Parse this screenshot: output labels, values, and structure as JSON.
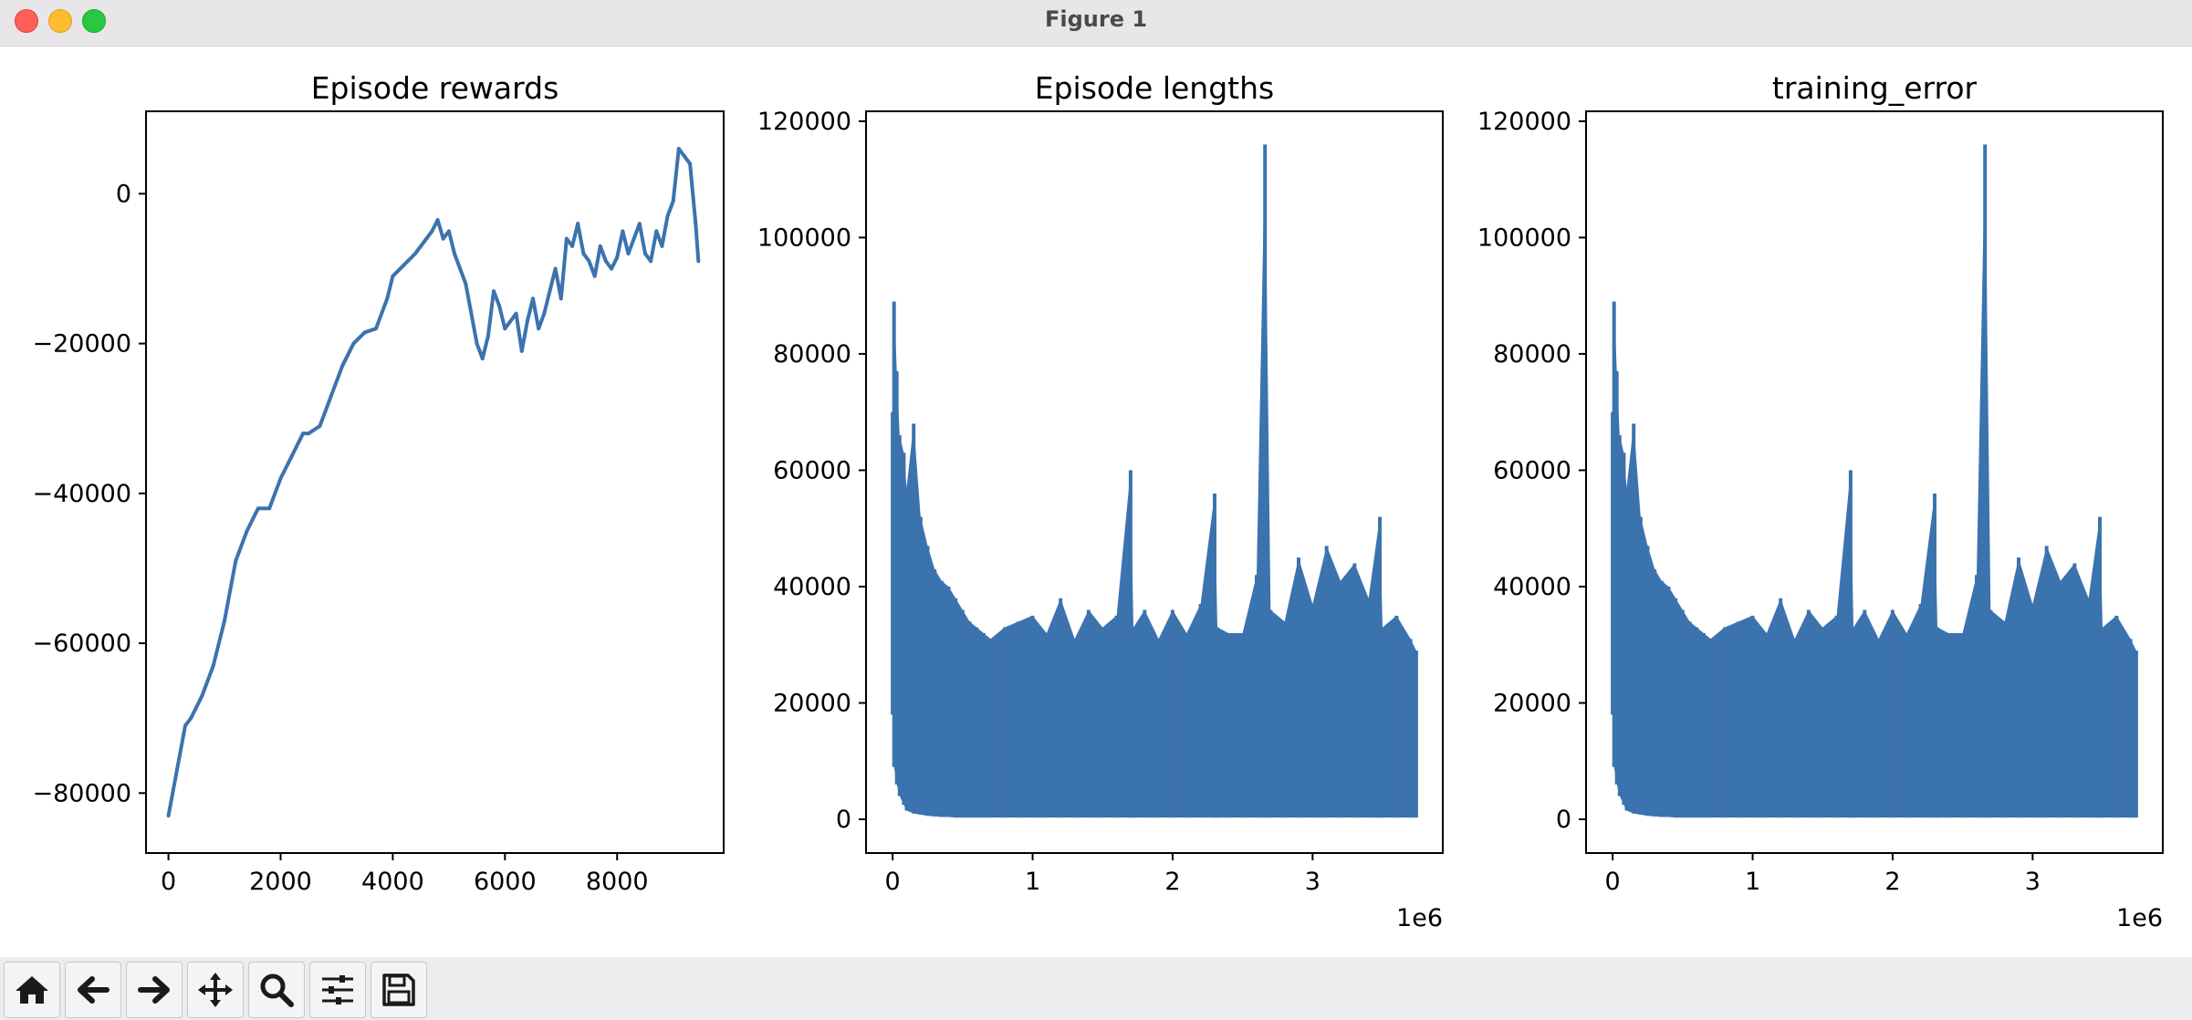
{
  "window": {
    "title": "Figure 1"
  },
  "toolbar": {
    "buttons": [
      {
        "name": "home-button",
        "icon": "home-icon"
      },
      {
        "name": "back-button",
        "icon": "arrow-left-icon"
      },
      {
        "name": "forward-button",
        "icon": "arrow-right-icon"
      },
      {
        "name": "pan-button",
        "icon": "move-icon"
      },
      {
        "name": "zoom-button",
        "icon": "magnifier-icon"
      },
      {
        "name": "configure-subplots-button",
        "icon": "sliders-icon"
      },
      {
        "name": "save-button",
        "icon": "floppy-disk-icon"
      }
    ]
  },
  "chart_data": [
    {
      "type": "line",
      "title": "Episode rewards",
      "xlabel": "",
      "ylabel": "",
      "xlim": [
        -400,
        9900
      ],
      "ylim": [
        -88000,
        11000
      ],
      "xticks": [
        0,
        2000,
        4000,
        6000,
        8000
      ],
      "xtick_labels": [
        "0",
        "2000",
        "4000",
        "6000",
        "8000"
      ],
      "yticks": [
        0,
        -20000,
        -40000,
        -60000,
        -80000
      ],
      "ytick_labels": [
        "0",
        "−20000",
        "−40000",
        "−60000",
        "−80000"
      ],
      "offset_text": "",
      "color": "#3b73ae",
      "x": [
        0,
        150,
        300,
        400,
        600,
        800,
        1000,
        1200,
        1400,
        1600,
        1800,
        2000,
        2200,
        2400,
        2500,
        2700,
        2900,
        3100,
        3300,
        3500,
        3700,
        3900,
        4000,
        4200,
        4400,
        4600,
        4700,
        4800,
        4900,
        5000,
        5100,
        5300,
        5500,
        5600,
        5700,
        5800,
        5900,
        6000,
        6200,
        6300,
        6400,
        6500,
        6600,
        6700,
        6900,
        7000,
        7100,
        7200,
        7300,
        7400,
        7500,
        7600,
        7700,
        7800,
        7900,
        8000,
        8100,
        8200,
        8300,
        8400,
        8500,
        8600,
        8700,
        8800,
        8900,
        9000,
        9100,
        9200,
        9300,
        9400,
        9450
      ],
      "y": [
        -83000,
        -77000,
        -71000,
        -70000,
        -67000,
        -63000,
        -57000,
        -49000,
        -45000,
        -42000,
        -42000,
        -38000,
        -35000,
        -32000,
        -32000,
        -31000,
        -27000,
        -23000,
        -20000,
        -18500,
        -18000,
        -14000,
        -11000,
        -9500,
        -8000,
        -6000,
        -5000,
        -3500,
        -6000,
        -5000,
        -8000,
        -12000,
        -20000,
        -22000,
        -19000,
        -13000,
        -15000,
        -18000,
        -16000,
        -21000,
        -17000,
        -14000,
        -18000,
        -16000,
        -10000,
        -14000,
        -6000,
        -7000,
        -4000,
        -8000,
        -9000,
        -11000,
        -7000,
        -9000,
        -10000,
        -8500,
        -5000,
        -8000,
        -6000,
        -4000,
        -8000,
        -9000,
        -5000,
        -7000,
        -3000,
        -1000,
        6000,
        5000,
        4000,
        -4000,
        -9000
      ]
    },
    {
      "type": "line",
      "title": "Episode lengths",
      "xlabel": "",
      "ylabel": "",
      "xlim": [
        -0.19,
        3.93
      ],
      "ylim": [
        -5800,
        121700
      ],
      "xticks": [
        0,
        1,
        2,
        3
      ],
      "xtick_labels": [
        "0",
        "1",
        "2",
        "3"
      ],
      "yticks": [
        0,
        20000,
        40000,
        60000,
        80000,
        100000,
        120000
      ],
      "ytick_labels": [
        "0",
        "20000",
        "40000",
        "60000",
        "80000",
        "100000",
        "120000"
      ],
      "offset_text": "1e6",
      "color": "#3b73ae",
      "x": [
        0,
        0.01,
        0.03,
        0.05,
        0.08,
        0.1,
        0.15,
        0.2,
        0.25,
        0.3,
        0.35,
        0.4,
        0.45,
        0.5,
        0.55,
        0.6,
        0.65,
        0.7,
        0.8,
        0.9,
        1.0,
        1.1,
        1.2,
        1.3,
        1.4,
        1.5,
        1.6,
        1.7,
        1.72,
        1.8,
        1.9,
        2.0,
        2.1,
        2.2,
        2.3,
        2.32,
        2.4,
        2.5,
        2.6,
        2.66,
        2.7,
        2.8,
        2.9,
        3.0,
        3.1,
        3.2,
        3.3,
        3.4,
        3.48,
        3.5,
        3.6,
        3.7,
        3.74
      ],
      "y": [
        70000,
        89000,
        77000,
        66000,
        63000,
        57000,
        68000,
        52000,
        47000,
        43000,
        41000,
        40000,
        38000,
        36000,
        34000,
        33000,
        32000,
        31000,
        33000,
        34000,
        35000,
        32000,
        38000,
        31000,
        36000,
        33000,
        35000,
        60000,
        33000,
        36000,
        31000,
        36000,
        32000,
        37000,
        56000,
        33000,
        32000,
        32000,
        42000,
        116000,
        36000,
        34000,
        45000,
        37000,
        47000,
        41000,
        44000,
        38000,
        52000,
        33000,
        35000,
        31000,
        29000
      ],
      "baseline": [
        18000,
        9000,
        6000,
        4000,
        2500,
        1500,
        1000,
        800,
        600,
        500,
        400,
        400,
        300,
        300,
        300,
        300,
        300,
        300,
        300,
        300,
        300,
        300,
        300,
        300,
        300,
        300,
        300,
        300,
        300,
        300,
        300,
        300,
        300,
        300,
        300,
        300,
        300,
        300,
        300,
        300,
        300,
        300,
        300,
        300,
        300,
        300,
        300,
        300,
        300,
        300,
        300,
        300,
        300
      ]
    },
    {
      "type": "line",
      "title": "training_error",
      "xlabel": "",
      "ylabel": "",
      "xlim": [
        -0.19,
        3.93
      ],
      "ylim": [
        -5800,
        121700
      ],
      "xticks": [
        0,
        1,
        2,
        3
      ],
      "xtick_labels": [
        "0",
        "1",
        "2",
        "3"
      ],
      "yticks": [
        0,
        20000,
        40000,
        60000,
        80000,
        100000,
        120000
      ],
      "ytick_labels": [
        "0",
        "20000",
        "40000",
        "60000",
        "80000",
        "100000",
        "120000"
      ],
      "offset_text": "1e6",
      "color": "#3b73ae",
      "x": [
        0,
        0.01,
        0.03,
        0.05,
        0.08,
        0.1,
        0.15,
        0.2,
        0.25,
        0.3,
        0.35,
        0.4,
        0.45,
        0.5,
        0.55,
        0.6,
        0.65,
        0.7,
        0.8,
        0.9,
        1.0,
        1.1,
        1.2,
        1.3,
        1.4,
        1.5,
        1.6,
        1.7,
        1.72,
        1.8,
        1.9,
        2.0,
        2.1,
        2.2,
        2.3,
        2.32,
        2.4,
        2.5,
        2.6,
        2.66,
        2.7,
        2.8,
        2.9,
        3.0,
        3.1,
        3.2,
        3.3,
        3.4,
        3.48,
        3.5,
        3.6,
        3.7,
        3.74
      ],
      "y": [
        70000,
        89000,
        77000,
        66000,
        63000,
        57000,
        68000,
        52000,
        47000,
        43000,
        41000,
        40000,
        38000,
        36000,
        34000,
        33000,
        32000,
        31000,
        33000,
        34000,
        35000,
        32000,
        38000,
        31000,
        36000,
        33000,
        35000,
        60000,
        33000,
        36000,
        31000,
        36000,
        32000,
        37000,
        56000,
        33000,
        32000,
        32000,
        42000,
        116000,
        36000,
        34000,
        45000,
        37000,
        47000,
        41000,
        44000,
        38000,
        52000,
        33000,
        35000,
        31000,
        29000
      ],
      "baseline": [
        18000,
        9000,
        6000,
        4000,
        2500,
        1500,
        1000,
        800,
        600,
        500,
        400,
        400,
        300,
        300,
        300,
        300,
        300,
        300,
        300,
        300,
        300,
        300,
        300,
        300,
        300,
        300,
        300,
        300,
        300,
        300,
        300,
        300,
        300,
        300,
        300,
        300,
        300,
        300,
        300,
        300,
        300,
        300,
        300,
        300,
        300,
        300,
        300,
        300,
        300,
        300,
        300,
        300,
        300
      ]
    }
  ]
}
